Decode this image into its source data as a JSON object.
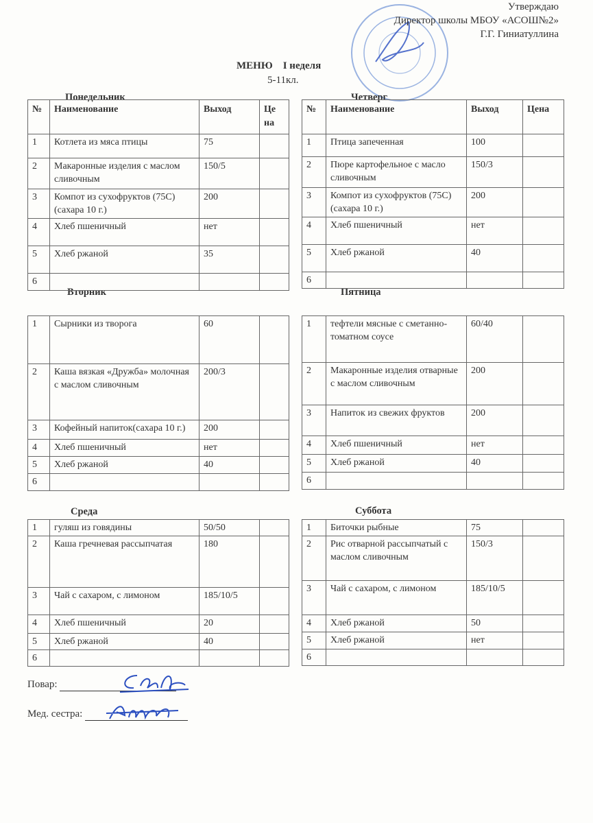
{
  "approval": {
    "line1": "Утверждаю",
    "line2": "Директор школы МБОУ «АСОШ№2»",
    "line3": "Г.Г. Гиниатуллина"
  },
  "title": "МЕНЮ    I неделя",
  "subtitle": "5-11кл.",
  "columns": {
    "num": "№",
    "name": "Наименование",
    "output": "Выход",
    "price_split": "Це на",
    "price": "Цена"
  },
  "days": {
    "monday": {
      "label": "Понедельник",
      "rows": [
        {
          "n": "1",
          "name": "Котлета из мяса птицы",
          "out": "75"
        },
        {
          "n": "2",
          "name": "Макаронные изделия с маслом сливочным",
          "out": "150/5"
        },
        {
          "n": "3",
          "name": "Компот из сухофруктов (75С) (сахара 10 г.)",
          "out": "200"
        },
        {
          "n": "4",
          "name": "Хлеб пшеничный",
          "out": "нет"
        },
        {
          "n": "5",
          "name": "Хлеб ржаной",
          "out": "35"
        },
        {
          "n": "6",
          "name": "",
          "out": ""
        }
      ]
    },
    "thursday": {
      "label": "Четверг",
      "rows": [
        {
          "n": "1",
          "name": "Птица запеченная",
          "out": "100"
        },
        {
          "n": "2",
          "name": "Пюре картофельное с масло сливочным",
          "out": "150/3"
        },
        {
          "n": "3",
          "name": "Компот из сухофруктов (75С) (сахара 10 г.)",
          "out": "200"
        },
        {
          "n": "4",
          "name": "Хлеб пшеничный",
          "out": "нет"
        },
        {
          "n": "5",
          "name": "Хлеб ржаной",
          "out": "40"
        },
        {
          "n": "6",
          "name": "",
          "out": ""
        }
      ]
    },
    "tuesday": {
      "label": "Вторник",
      "rows": [
        {
          "n": "1",
          "name": "Сырники из творога",
          "out": "60"
        },
        {
          "n": "2",
          "name": "Каша вязкая «Дружба» молочная с маслом сливочным",
          "out": "200/3"
        },
        {
          "n": "3",
          "name": "Кофейный напиток(сахара 10 г.)",
          "out": "200"
        },
        {
          "n": "4",
          "name": "Хлеб пшеничный",
          "out": "нет"
        },
        {
          "n": "5",
          "name": "Хлеб ржаной",
          "out": "40"
        },
        {
          "n": "6",
          "name": "",
          "out": ""
        }
      ]
    },
    "friday": {
      "label": "Пятница",
      "rows": [
        {
          "n": "1",
          "name": "тефтели мясные с сметанно-томатном соусе",
          "out": "60/40"
        },
        {
          "n": "2",
          "name": "Макаронные изделия отварные  с маслом сливочным",
          "out": "200"
        },
        {
          "n": "3",
          "name": "Напиток из свежих фруктов",
          "out": "200"
        },
        {
          "n": "4",
          "name": "Хлеб пшеничный",
          "out": "нет"
        },
        {
          "n": "5",
          "name": "Хлеб ржаной",
          "out": "40"
        },
        {
          "n": "6",
          "name": "",
          "out": ""
        }
      ]
    },
    "wednesday": {
      "label": "Среда",
      "rows": [
        {
          "n": "1",
          "name": "гуляш из говядины",
          "out": "50/50"
        },
        {
          "n": "2",
          "name": "Каша гречневая рассыпчатая",
          "out": "180"
        },
        {
          "n": "3",
          "name": "Чай с сахаром, с лимоном",
          "out": "185/10/5"
        },
        {
          "n": "4",
          "name": "Хлеб пшеничный",
          "out": "20"
        },
        {
          "n": "5",
          "name": "Хлеб ржаной",
          "out": "40"
        },
        {
          "n": "6",
          "name": "",
          "out": ""
        }
      ]
    },
    "saturday": {
      "label": "Суббота",
      "rows": [
        {
          "n": "1",
          "name": "Биточки рыбные",
          "out": "75"
        },
        {
          "n": "2",
          "name": "Рис отварной рассыпчатый с маслом сливочным",
          "out": "150/3"
        },
        {
          "n": "3",
          "name": "Чай с сахаром, с лимоном",
          "out": "185/10/5"
        },
        {
          "n": "4",
          "name": "Хлеб ржаной",
          "out": "50"
        },
        {
          "n": "5",
          "name": "Хлеб ржаной",
          "out": "нет"
        },
        {
          "n": "6",
          "name": "",
          "out": ""
        }
      ]
    }
  },
  "signatures": {
    "cook": "Повар:",
    "nurse": "Мед. сестра:"
  },
  "stamp": {
    "text": "МБОУ АСОШ №2",
    "color": "#4a78c8"
  },
  "ink_color": "#2b4fc0"
}
